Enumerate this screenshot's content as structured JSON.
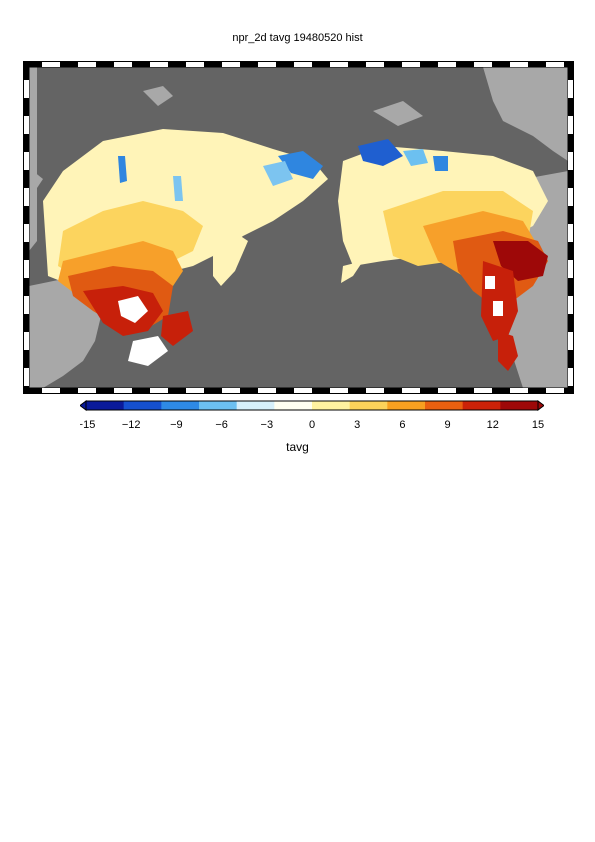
{
  "title": "npr_2d tavg 19480520 hist",
  "colorbar": {
    "label": "tavg",
    "ticks": [
      "−15",
      "−12",
      "−9",
      "−6",
      "−3",
      "0",
      "3",
      "6",
      "9",
      "12",
      "15"
    ],
    "min": -15,
    "max": 15,
    "colors": [
      "#0a1a9a",
      "#1550d0",
      "#2e8ae6",
      "#6cc0f0",
      "#d6f0fa",
      "#fffff0",
      "#fff2a0",
      "#fcd25a",
      "#f8a020",
      "#ea6010",
      "#cc2208",
      "#9e0808"
    ]
  },
  "map": {
    "ocean_color": "#646464",
    "land_color": "#a8a8a8",
    "missing_color": "#ffffff"
  }
}
